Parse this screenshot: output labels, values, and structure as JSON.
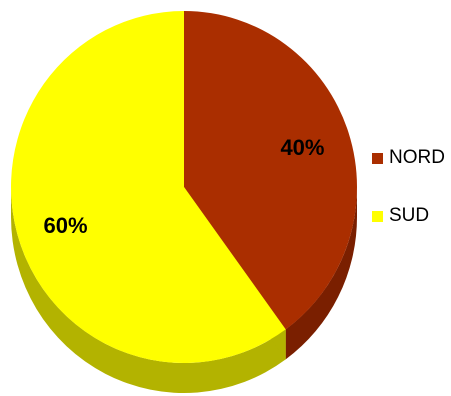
{
  "chart_data": {
    "type": "pie",
    "title": "",
    "slices": [
      {
        "label": "NORD",
        "value": 40,
        "data_label": "40%",
        "color": "#AA2E00",
        "side_color": "#7A1F00"
      },
      {
        "label": "SUD",
        "value": 60,
        "data_label": "60%",
        "color": "#FFFF00",
        "side_color": "#B3B300"
      }
    ],
    "legend": {
      "position": "right",
      "items": [
        {
          "label": "NORD",
          "color": "#AA2E00"
        },
        {
          "label": "SUD",
          "color": "#FFFF00"
        }
      ]
    },
    "style": "3d"
  }
}
